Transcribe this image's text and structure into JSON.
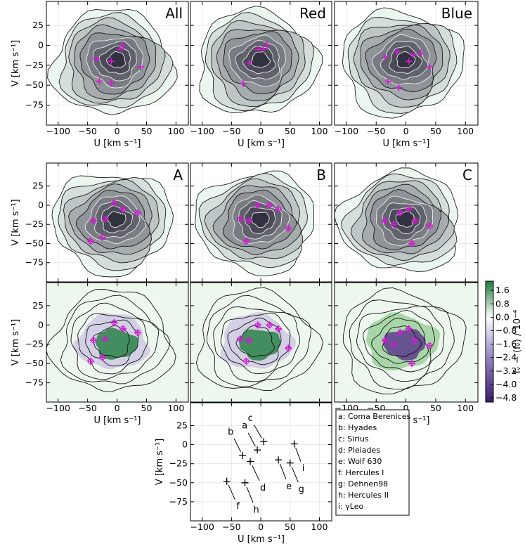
{
  "axes": {
    "xlabel": "U [km s⁻¹]",
    "ylabel": "V [km s⁻¹]",
    "xlim": [
      -120,
      121
    ],
    "ylim": [
      -100,
      55
    ],
    "xticks": [
      {
        "value": -100,
        "label": "−100"
      },
      {
        "value": -50,
        "label": "−50"
      },
      0,
      50,
      100
    ],
    "yticks": [
      25,
      0,
      {
        "value": -25,
        "label": "−25"
      },
      {
        "value": -50,
        "label": "−50"
      },
      {
        "value": -75,
        "label": "−75"
      }
    ]
  },
  "panels": [
    {
      "title": "All",
      "title_color": "#000000",
      "markers": [
        [
          -30,
          -45
        ],
        [
          -10,
          -47
        ],
        [
          40,
          -27
        ],
        [
          -35,
          -17
        ],
        [
          -10,
          -20
        ],
        [
          5,
          -5
        ],
        [
          10,
          0
        ]
      ]
    },
    {
      "title": "Red",
      "title_color": "#d62728",
      "markers": [
        [
          -30,
          -48
        ],
        [
          -20,
          -22
        ],
        [
          -5,
          -5
        ],
        [
          5,
          -5
        ],
        [
          10,
          0
        ]
      ]
    },
    {
      "title": "Blue",
      "title_color": "#1f77b4",
      "markers": [
        [
          -30,
          -45
        ],
        [
          -12,
          -53
        ],
        [
          40,
          -27
        ],
        [
          -35,
          -15
        ],
        [
          -15,
          -8
        ],
        [
          5,
          -20
        ],
        [
          12,
          -12
        ],
        [
          25,
          -10
        ]
      ]
    },
    {
      "title": "A",
      "title_color": "#000000",
      "markers": [
        [
          -45,
          -47
        ],
        [
          -25,
          -42
        ],
        [
          -40,
          -20
        ],
        [
          -20,
          -18
        ],
        [
          -5,
          3
        ],
        [
          10,
          -5
        ],
        [
          35,
          -10
        ]
      ]
    },
    {
      "title": "B",
      "title_color": "#000000",
      "markers": [
        [
          -25,
          -47
        ],
        [
          47,
          -30
        ],
        [
          -35,
          -18
        ],
        [
          -20,
          -20
        ],
        [
          -5,
          0
        ],
        [
          15,
          0
        ],
        [
          30,
          -5
        ]
      ]
    },
    {
      "title": "C",
      "title_color": "#000000",
      "markers": [
        [
          -35,
          -20
        ],
        [
          -20,
          -25
        ],
        [
          10,
          -50
        ],
        [
          15,
          -20
        ],
        [
          40,
          -27
        ],
        [
          5,
          -5
        ],
        [
          -10,
          -10
        ]
      ]
    }
  ],
  "colorbar": {
    "label": "fᵥ − ⟨fᵥ⟩ / 10⁻⁴",
    "lim": [
      -5.05,
      2.15
    ],
    "ticks": [
      {
        "value": 1.6,
        "label": "1.6"
      },
      {
        "value": 0.8,
        "label": "0.8"
      },
      {
        "value": 0,
        "label": "0.0"
      },
      {
        "value": -0.8,
        "label": "−0.8"
      },
      {
        "value": -1.6,
        "label": "−1.6"
      },
      {
        "value": -2.4,
        "label": "−2.4"
      },
      {
        "value": -3.2,
        "label": "−3.2"
      },
      {
        "value": -4.0,
        "label": "−4.0"
      },
      {
        "value": -4.8,
        "label": "−4.8"
      }
    ]
  },
  "moving_groups": {
    "points": [
      {
        "label": "a",
        "U": -6,
        "V": -7
      },
      {
        "label": "b",
        "U": -31,
        "V": -14
      },
      {
        "label": "c",
        "U": 5,
        "V": 4
      },
      {
        "label": "d",
        "U": -18,
        "V": -22
      },
      {
        "label": "e",
        "U": 30,
        "V": -20
      },
      {
        "label": "f",
        "U": -58,
        "V": -48
      },
      {
        "label": "g",
        "U": 50,
        "V": -24
      },
      {
        "label": "h",
        "U": -27,
        "V": -50
      },
      {
        "label": "i",
        "U": 57,
        "V": 1
      }
    ],
    "legend": [
      "a: Coma Berenices",
      "b: Hyades",
      "c: Sirius",
      "d: Pleiades",
      "e: Wolf 630",
      "f: Hercules I",
      "g: Dehnen98",
      "h: Hercules II",
      "i: γLeo"
    ]
  }
}
